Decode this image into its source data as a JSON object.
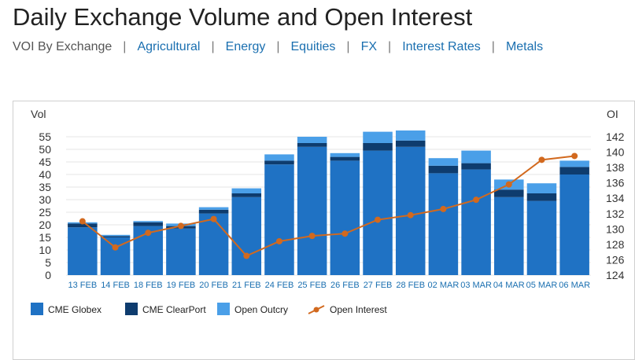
{
  "title": "Daily Exchange Volume and Open Interest",
  "nav": {
    "items": [
      {
        "label": "VOI By Exchange",
        "active": true
      },
      {
        "label": "Agricultural",
        "active": false
      },
      {
        "label": "Energy",
        "active": false
      },
      {
        "label": "Equities",
        "active": false
      },
      {
        "label": "FX",
        "active": false
      },
      {
        "label": "Interest Rates",
        "active": false
      },
      {
        "label": "Metals",
        "active": false
      }
    ],
    "separator": "|"
  },
  "chart_data": {
    "type": "bar",
    "stacked": true,
    "categories": [
      "13 FEB",
      "14 FEB",
      "18 FEB",
      "19 FEB",
      "20 FEB",
      "21 FEB",
      "24 FEB",
      "25 FEB",
      "26 FEB",
      "27 FEB",
      "28 FEB",
      "02 MAR",
      "03 MAR",
      "04 MAR",
      "05 MAR",
      "06 MAR"
    ],
    "left_axis": {
      "label": "Vol",
      "ylim": [
        0,
        55
      ],
      "ticks": [
        0,
        5,
        10,
        15,
        20,
        25,
        30,
        35,
        40,
        45,
        50,
        55
      ]
    },
    "right_axis": {
      "label": "OI",
      "ylim": [
        124,
        142
      ],
      "ticks": [
        124,
        126,
        128,
        130,
        132,
        134,
        136,
        138,
        140,
        142
      ]
    },
    "series": [
      {
        "name": "CME Globex",
        "kind": "bar",
        "color": "#1f72c4",
        "values": [
          19,
          15,
          19.5,
          18.5,
          24.5,
          31,
          44,
          51,
          45.5,
          49.5,
          51,
          40.5,
          42,
          31,
          29.5,
          40
        ]
      },
      {
        "name": "CME ClearPort",
        "kind": "bar",
        "color": "#0e3c6e",
        "values": [
          1.5,
          0.5,
          1.5,
          1,
          1.5,
          1.5,
          1.5,
          1.5,
          1.5,
          3,
          2.5,
          3,
          2.5,
          3,
          3,
          3
        ]
      },
      {
        "name": "Open Outcry",
        "kind": "bar",
        "color": "#4a9fe8",
        "values": [
          0.5,
          0.5,
          0.5,
          1,
          1,
          2,
          2.5,
          2.5,
          1.5,
          4.5,
          4,
          3,
          5,
          4,
          4,
          2.5
        ]
      },
      {
        "name": "Open Interest",
        "kind": "line",
        "axis": "right",
        "color": "#d2691e",
        "values": [
          131,
          127.6,
          129.5,
          130.4,
          131.3,
          126.5,
          128.4,
          129.1,
          129.4,
          131.2,
          131.8,
          132.6,
          133.8,
          135.8,
          139,
          139.5
        ]
      }
    ],
    "legend_position": "bottom-left",
    "grid": true
  }
}
